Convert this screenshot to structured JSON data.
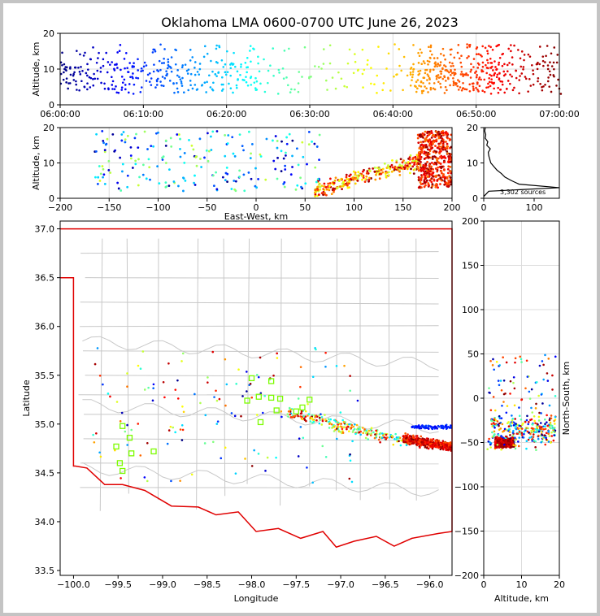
{
  "title": "Oklahoma LMA 0600-0700 UTC June 26, 2023",
  "colors": {
    "border": "#e00000",
    "county": "#c8c8c8",
    "station": "#7CFC00",
    "grid": "#dcdcdc",
    "histogram": "#000000"
  },
  "chart_data": [
    {
      "name": "altitude-vs-time",
      "type": "scatter",
      "title": "Oklahoma LMA 0600-0700 UTC June 26, 2023",
      "xlabel": "",
      "ylabel": "Altitude, km",
      "xlim_minutes": [
        0,
        60
      ],
      "ylim": [
        0,
        20
      ],
      "grid": true,
      "x_tick_labels": [
        "06:00:00",
        "06:10:00",
        "06:20:00",
        "06:30:00",
        "06:40:00",
        "06:50:00",
        "07:00:00"
      ],
      "y_tick_labels": [
        "0",
        "10",
        "20"
      ],
      "colormap": "jet (by time)"
    },
    {
      "name": "altitude-vs-east-west",
      "type": "scatter",
      "xlabel": "East-West, km",
      "ylabel": "Altitude, km",
      "xlim": [
        -200,
        200
      ],
      "ylim": [
        0,
        20
      ],
      "grid": true,
      "x_tick_labels": [
        "−200",
        "−150",
        "−100",
        "−50",
        "0",
        "50",
        "100",
        "150",
        "200"
      ],
      "y_tick_labels": [
        "0",
        "10",
        "20"
      ]
    },
    {
      "name": "altitude-histogram",
      "type": "line",
      "xlim": [
        0,
        150
      ],
      "ylim": [
        0,
        20
      ],
      "x_tick_labels": [
        "0",
        "100"
      ],
      "y_tick_labels": [
        "0",
        "10",
        "20"
      ],
      "annotation": "3,302 sources",
      "profile": [
        {
          "alt": 0.5,
          "count": 0
        },
        {
          "alt": 2,
          "count": 10
        },
        {
          "alt": 3,
          "count": 150
        },
        {
          "alt": 4,
          "count": 70
        },
        {
          "alt": 5,
          "count": 55
        },
        {
          "alt": 6,
          "count": 42
        },
        {
          "alt": 7,
          "count": 35
        },
        {
          "alt": 8,
          "count": 26
        },
        {
          "alt": 9,
          "count": 20
        },
        {
          "alt": 10,
          "count": 14
        },
        {
          "alt": 11,
          "count": 12
        },
        {
          "alt": 12,
          "count": 10
        },
        {
          "alt": 13,
          "count": 9
        },
        {
          "alt": 14,
          "count": 13
        },
        {
          "alt": 15,
          "count": 6
        },
        {
          "alt": 16,
          "count": 8
        },
        {
          "alt": 17,
          "count": 3
        },
        {
          "alt": 18,
          "count": 4
        },
        {
          "alt": 19,
          "count": 2
        },
        {
          "alt": 20,
          "count": 3
        }
      ]
    },
    {
      "name": "plan-view",
      "type": "scatter",
      "xlabel": "Longitude",
      "ylabel": "Latitude",
      "xlim": [
        -100.15,
        -95.75
      ],
      "ylim": [
        33.45,
        37.08
      ],
      "x_tick_labels": [
        "−100.0",
        "−99.5",
        "−99.0",
        "−98.5",
        "−98.0",
        "−97.5",
        "−97.0",
        "−96.5",
        "−96.0"
      ],
      "y_tick_labels": [
        "33.5",
        "34.0",
        "34.5",
        "35.0",
        "35.5",
        "36.0",
        "36.5",
        "37.0"
      ],
      "stations": [
        {
          "lon": -99.45,
          "lat": 34.98
        },
        {
          "lon": -99.37,
          "lat": 34.86
        },
        {
          "lon": -99.52,
          "lat": 34.77
        },
        {
          "lon": -99.35,
          "lat": 34.7
        },
        {
          "lon": -99.48,
          "lat": 34.6
        },
        {
          "lon": -99.45,
          "lat": 34.52
        },
        {
          "lon": -99.1,
          "lat": 34.72
        },
        {
          "lon": -98.0,
          "lat": 35.47
        },
        {
          "lon": -97.78,
          "lat": 35.44
        },
        {
          "lon": -98.05,
          "lat": 35.24
        },
        {
          "lon": -97.92,
          "lat": 35.28
        },
        {
          "lon": -97.78,
          "lat": 35.27
        },
        {
          "lon": -97.68,
          "lat": 35.26
        },
        {
          "lon": -97.72,
          "lat": 35.14
        },
        {
          "lon": -97.9,
          "lat": 35.02
        },
        {
          "lon": -97.5,
          "lat": 35.13
        },
        {
          "lon": -97.43,
          "lat": 35.17
        },
        {
          "lon": -97.35,
          "lat": 35.25
        }
      ]
    },
    {
      "name": "north-south-vs-altitude",
      "type": "scatter",
      "xlabel": "Altitude, km",
      "ylabel": "North-South, km",
      "xlim": [
        0,
        20
      ],
      "ylim": [
        -200,
        200
      ],
      "grid": true,
      "x_tick_labels": [
        "0",
        "10",
        "20"
      ],
      "y_tick_labels": [
        "200",
        "150",
        "100",
        "50",
        "0",
        "−50",
        "−100",
        "−150",
        "−200"
      ]
    }
  ]
}
